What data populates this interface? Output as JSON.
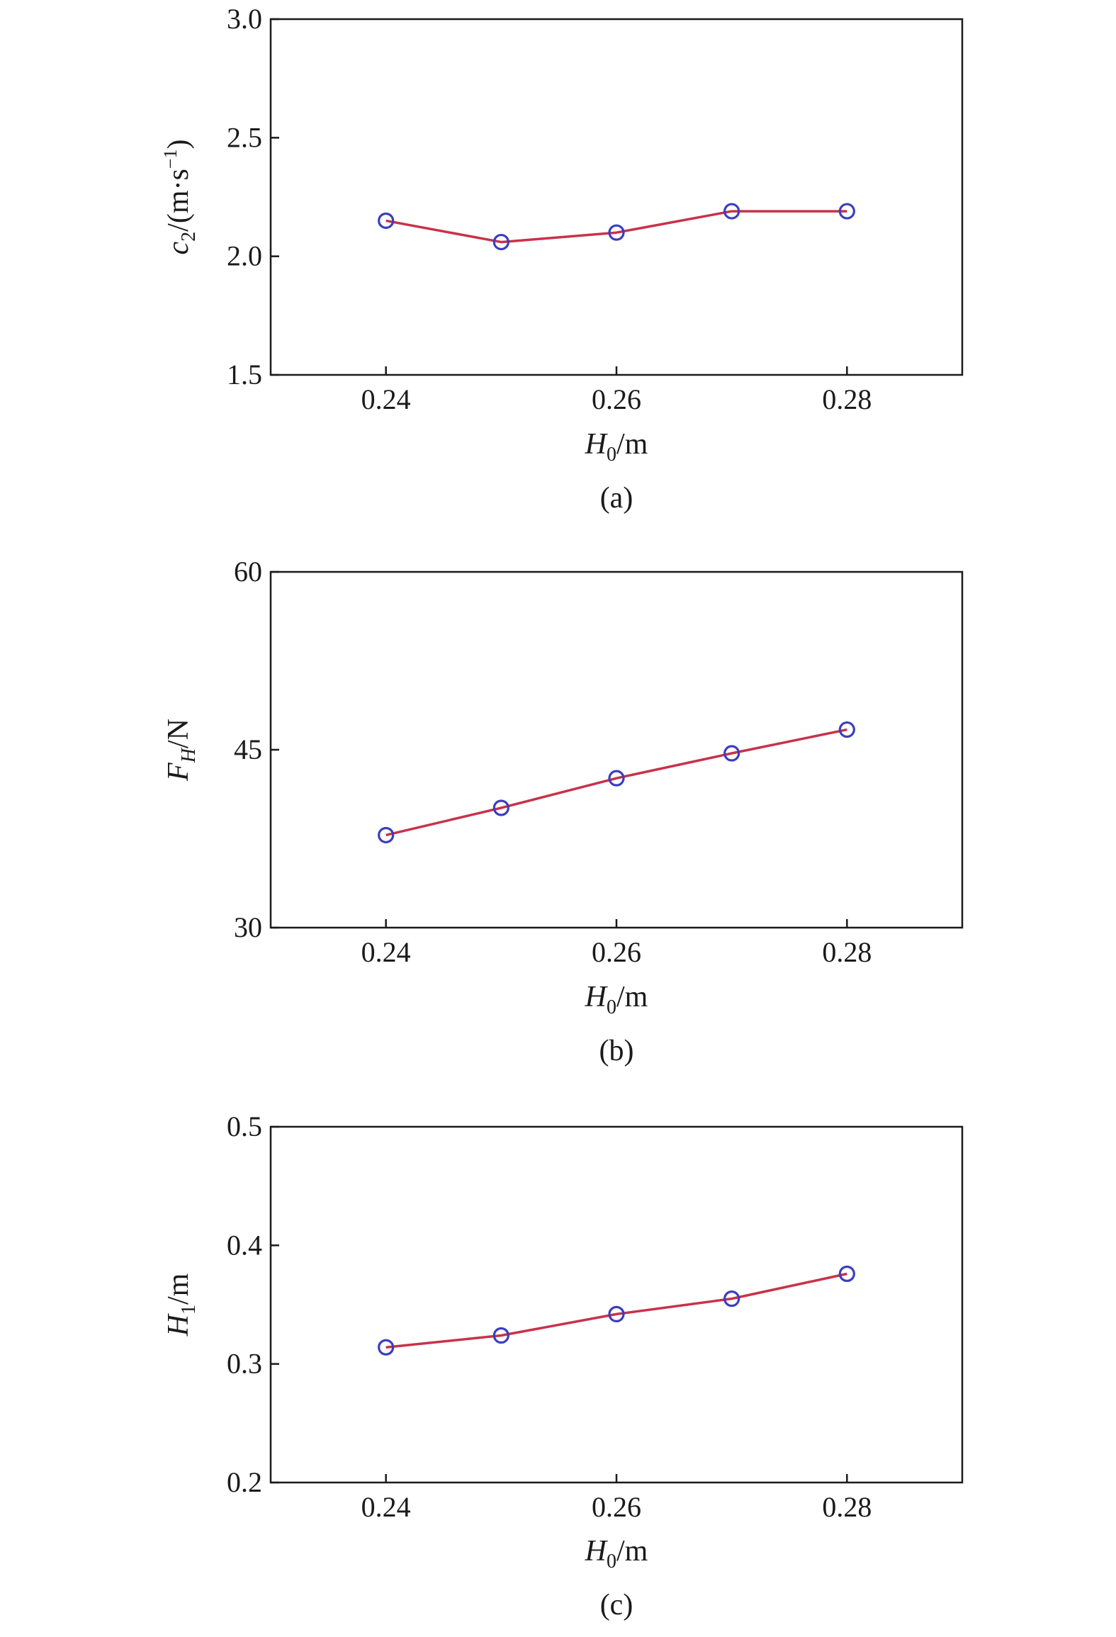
{
  "chart_data": [
    {
      "type": "line",
      "panel_label": "(a)",
      "x": [
        0.24,
        0.25,
        0.26,
        0.27,
        0.28
      ],
      "series": [
        {
          "values": [
            2.15,
            2.06,
            2.1,
            2.19,
            2.19
          ]
        }
      ],
      "xlim": [
        0.23,
        0.29
      ],
      "ylim": [
        1.5,
        3.0
      ],
      "xticks": [
        0.24,
        0.26,
        0.28
      ],
      "yticks": [
        1.5,
        2.0,
        2.5,
        3.0
      ],
      "xtick_labels": [
        "0.24",
        "0.26",
        "0.28"
      ],
      "ytick_labels": [
        "1.5",
        "2.0",
        "2.5",
        "3.0"
      ],
      "xlabel": {
        "main": "H",
        "sub": "0",
        "rest": "/m"
      },
      "ylabel": {
        "main": "c",
        "sub": "2",
        "rest": "/(m·s",
        "sup": "−1",
        "close": ")"
      },
      "grid": false,
      "colors": {
        "line": "#c8324a",
        "marker": "#3a3ec0"
      }
    },
    {
      "type": "line",
      "panel_label": "(b)",
      "x": [
        0.24,
        0.25,
        0.26,
        0.27,
        0.28
      ],
      "series": [
        {
          "values": [
            37.8,
            40.1,
            42.6,
            44.7,
            46.7
          ]
        }
      ],
      "xlim": [
        0.23,
        0.29
      ],
      "ylim": [
        30,
        60
      ],
      "xticks": [
        0.24,
        0.26,
        0.28
      ],
      "yticks": [
        30,
        45,
        60
      ],
      "xtick_labels": [
        "0.24",
        "0.26",
        "0.28"
      ],
      "ytick_labels": [
        "30",
        "45",
        "60"
      ],
      "xlabel": {
        "main": "H",
        "sub": "0",
        "rest": "/m"
      },
      "ylabel": {
        "main": "F",
        "sub": "H",
        "rest": "/N"
      },
      "grid": false,
      "colors": {
        "line": "#c8324a",
        "marker": "#3a3ec0"
      }
    },
    {
      "type": "line",
      "panel_label": "(c)",
      "x": [
        0.24,
        0.25,
        0.26,
        0.27,
        0.28
      ],
      "series": [
        {
          "values": [
            0.314,
            0.324,
            0.342,
            0.355,
            0.376
          ]
        }
      ],
      "xlim": [
        0.23,
        0.29
      ],
      "ylim": [
        0.2,
        0.5
      ],
      "xticks": [
        0.24,
        0.26,
        0.28
      ],
      "yticks": [
        0.2,
        0.3,
        0.4,
        0.5
      ],
      "xtick_labels": [
        "0.24",
        "0.26",
        "0.28"
      ],
      "ytick_labels": [
        "0.2",
        "0.3",
        "0.4",
        "0.5"
      ],
      "xlabel": {
        "main": "H",
        "sub": "0",
        "rest": "/m"
      },
      "ylabel": {
        "main": "H",
        "sub": "1",
        "rest": "/m"
      },
      "grid": false,
      "colors": {
        "line": "#c8324a",
        "marker": "#3a3ec0"
      }
    }
  ]
}
